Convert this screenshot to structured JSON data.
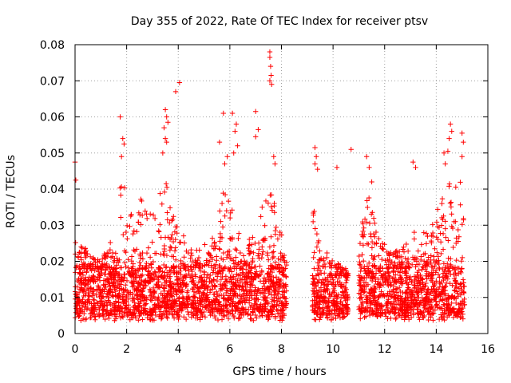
{
  "chart_data": {
    "type": "scatter",
    "title": "Day 355 of 2022, Rate Of TEC Index for receiver ptsv",
    "xlabel": "GPS time / hours",
    "ylabel": "ROTI / TECUs",
    "xlim": [
      0,
      16
    ],
    "ylim": [
      0,
      0.08
    ],
    "grid": true,
    "marker": "+",
    "color": "#ff0000",
    "x_ticks": [
      0,
      2,
      4,
      6,
      8,
      10,
      12,
      14,
      16
    ],
    "x_tick_labels": [
      "0",
      "2",
      "4",
      "6",
      "8",
      "10",
      "12",
      "14",
      "16"
    ],
    "y_ticks": [
      0,
      0.01,
      0.02,
      0.03,
      0.04,
      0.05,
      0.06,
      0.07,
      0.08
    ],
    "y_tick_labels": [
      "0",
      "0.01",
      "0.02",
      "0.03",
      "0.04",
      "0.05",
      "0.06",
      "0.07",
      "0.08"
    ],
    "data_segments": [
      {
        "x_start": 0.0,
        "x_end": 8.2,
        "typical_range": [
          0.005,
          0.018
        ],
        "envelope": [
          [
            0.0,
            0.03
          ],
          [
            0.5,
            0.022
          ],
          [
            1.0,
            0.02
          ],
          [
            1.5,
            0.028
          ],
          [
            1.8,
            0.045
          ],
          [
            2.2,
            0.033
          ],
          [
            2.6,
            0.038
          ],
          [
            3.0,
            0.033
          ],
          [
            3.5,
            0.045
          ],
          [
            4.0,
            0.03
          ],
          [
            4.5,
            0.026
          ],
          [
            5.0,
            0.025
          ],
          [
            5.5,
            0.028
          ],
          [
            5.8,
            0.045
          ],
          [
            6.2,
            0.03
          ],
          [
            6.7,
            0.026
          ],
          [
            7.2,
            0.035
          ],
          [
            7.6,
            0.04
          ],
          [
            8.0,
            0.03
          ],
          [
            8.2,
            0.022
          ]
        ]
      },
      {
        "x_start": 9.2,
        "x_end": 10.6,
        "typical_range": [
          0.005,
          0.016
        ],
        "envelope": [
          [
            9.2,
            0.04
          ],
          [
            9.5,
            0.025
          ],
          [
            9.8,
            0.022
          ],
          [
            10.2,
            0.02
          ],
          [
            10.6,
            0.018
          ]
        ]
      },
      {
        "x_start": 11.0,
        "x_end": 15.1,
        "typical_range": [
          0.005,
          0.018
        ],
        "envelope": [
          [
            11.0,
            0.025
          ],
          [
            11.3,
            0.04
          ],
          [
            11.8,
            0.027
          ],
          [
            12.3,
            0.022
          ],
          [
            12.8,
            0.025
          ],
          [
            13.2,
            0.03
          ],
          [
            13.6,
            0.028
          ],
          [
            14.0,
            0.034
          ],
          [
            14.4,
            0.04
          ],
          [
            14.7,
            0.045
          ],
          [
            15.1,
            0.04
          ]
        ]
      }
    ],
    "outliers": [
      {
        "x": 0.0,
        "y": 0.0475
      },
      {
        "x": 0.03,
        "y": 0.0425
      },
      {
        "x": 1.75,
        "y": 0.06
      },
      {
        "x": 1.85,
        "y": 0.054
      },
      {
        "x": 1.9,
        "y": 0.0525
      },
      {
        "x": 1.8,
        "y": 0.049
      },
      {
        "x": 3.5,
        "y": 0.062
      },
      {
        "x": 3.55,
        "y": 0.06
      },
      {
        "x": 3.6,
        "y": 0.0585
      },
      {
        "x": 3.45,
        "y": 0.057
      },
      {
        "x": 3.5,
        "y": 0.054
      },
      {
        "x": 3.55,
        "y": 0.053
      },
      {
        "x": 3.4,
        "y": 0.05
      },
      {
        "x": 3.9,
        "y": 0.067
      },
      {
        "x": 4.05,
        "y": 0.0695
      },
      {
        "x": 5.75,
        "y": 0.061
      },
      {
        "x": 5.6,
        "y": 0.053
      },
      {
        "x": 6.1,
        "y": 0.061
      },
      {
        "x": 6.25,
        "y": 0.058
      },
      {
        "x": 6.2,
        "y": 0.056
      },
      {
        "x": 6.3,
        "y": 0.052
      },
      {
        "x": 6.15,
        "y": 0.05
      },
      {
        "x": 5.9,
        "y": 0.049
      },
      {
        "x": 5.8,
        "y": 0.047
      },
      {
        "x": 7.0,
        "y": 0.0615
      },
      {
        "x": 7.55,
        "y": 0.078
      },
      {
        "x": 7.55,
        "y": 0.0765
      },
      {
        "x": 7.58,
        "y": 0.074
      },
      {
        "x": 7.6,
        "y": 0.0715
      },
      {
        "x": 7.55,
        "y": 0.07
      },
      {
        "x": 7.62,
        "y": 0.069
      },
      {
        "x": 7.1,
        "y": 0.0565
      },
      {
        "x": 7.0,
        "y": 0.0545
      },
      {
        "x": 7.7,
        "y": 0.049
      },
      {
        "x": 7.75,
        "y": 0.047
      },
      {
        "x": 9.3,
        "y": 0.0515
      },
      {
        "x": 9.35,
        "y": 0.049
      },
      {
        "x": 9.3,
        "y": 0.047
      },
      {
        "x": 9.4,
        "y": 0.0455
      },
      {
        "x": 10.15,
        "y": 0.046
      },
      {
        "x": 10.7,
        "y": 0.051
      },
      {
        "x": 11.3,
        "y": 0.049
      },
      {
        "x": 11.4,
        "y": 0.046
      },
      {
        "x": 11.5,
        "y": 0.042
      },
      {
        "x": 13.1,
        "y": 0.0475
      },
      {
        "x": 13.2,
        "y": 0.046
      },
      {
        "x": 14.55,
        "y": 0.058
      },
      {
        "x": 14.6,
        "y": 0.056
      },
      {
        "x": 14.5,
        "y": 0.054
      },
      {
        "x": 14.45,
        "y": 0.0505
      },
      {
        "x": 15.0,
        "y": 0.0555
      },
      {
        "x": 15.05,
        "y": 0.053
      },
      {
        "x": 15.0,
        "y": 0.049
      },
      {
        "x": 14.3,
        "y": 0.05
      },
      {
        "x": 14.35,
        "y": 0.047
      }
    ]
  }
}
